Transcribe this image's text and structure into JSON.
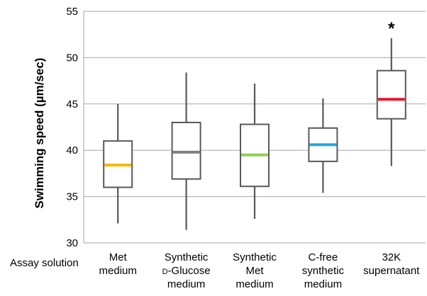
{
  "chart_data": {
    "type": "box",
    "ylabel": "Swimming speed (µm/sec)",
    "xlabel": "Assay solution",
    "ylim": [
      30,
      55
    ],
    "yticks": [
      "30",
      "35",
      "40",
      "45",
      "50",
      "55"
    ],
    "grid": "horizontal",
    "categories": [
      {
        "lines": [
          "Met",
          "medium"
        ]
      },
      {
        "lines": [
          "Synthetic",
          "D-Glucose",
          "medium"
        ],
        "smallcaps_prefix": "D"
      },
      {
        "lines": [
          "Synthetic",
          "Met",
          "medium"
        ]
      },
      {
        "lines": [
          "C-free",
          "synthetic",
          "medium"
        ]
      },
      {
        "lines": [
          "32K",
          "supernatant"
        ]
      }
    ],
    "boxes": [
      {
        "min": 32.1,
        "q1": 36.0,
        "median": 38.4,
        "q3": 41.0,
        "max": 45.0,
        "median_color": "#f5b800",
        "annotation": ""
      },
      {
        "min": 31.4,
        "q1": 36.9,
        "median": 39.8,
        "q3": 43.0,
        "max": 48.4,
        "median_color": "#7f7f7f",
        "annotation": ""
      },
      {
        "min": 32.6,
        "q1": 36.1,
        "median": 39.5,
        "q3": 42.8,
        "max": 47.2,
        "median_color": "#8fd14f",
        "annotation": ""
      },
      {
        "min": 35.4,
        "q1": 38.8,
        "median": 40.6,
        "q3": 42.4,
        "max": 45.6,
        "median_color": "#1ea7e1",
        "annotation": ""
      },
      {
        "min": 38.3,
        "q1": 43.4,
        "median": 45.5,
        "q3": 48.6,
        "max": 52.1,
        "median_color": "#e8192c",
        "annotation": "*"
      }
    ]
  }
}
